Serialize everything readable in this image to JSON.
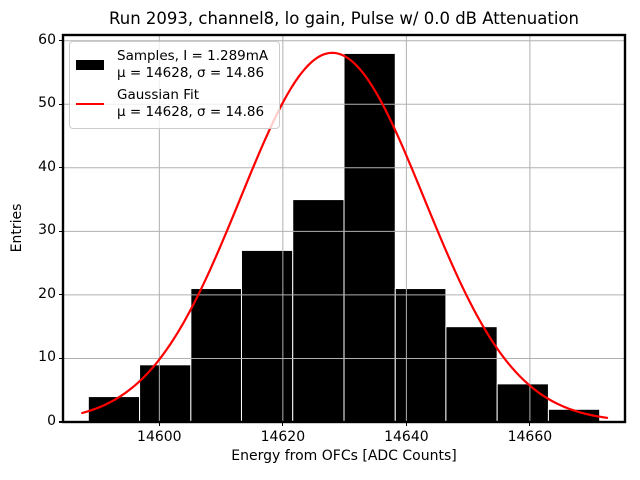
{
  "chart_data": {
    "type": "bar",
    "subtype": "histogram-with-fit",
    "title": "Run 2093, channel8, lo gain, Pulse w/ 0.0 dB Attenuation",
    "xlabel": "Energy from OFCs [ADC Counts]",
    "ylabel": "Entries",
    "x_ticks": [
      14600,
      14620,
      14640,
      14660
    ],
    "y_ticks": [
      0,
      10,
      20,
      30,
      40,
      50,
      60
    ],
    "xlim": [
      14584.4,
      14675.4
    ],
    "ylim": [
      0,
      60.9
    ],
    "grid": true,
    "grid_color": "#b0b0b0",
    "axis_color": "#000000",
    "background_color": "#ffffff",
    "histogram": {
      "bin_edges": [
        14588.5,
        14596.8,
        14605.1,
        14613.3,
        14621.6,
        14629.9,
        14638.2,
        14646.4,
        14654.7,
        14663.0,
        14671.3
      ],
      "counts": [
        4,
        9,
        21,
        27,
        35,
        58,
        21,
        15,
        6,
        2
      ],
      "bar_color": "#000000",
      "bar_edge_color": "#ffffff"
    },
    "gaussian_fit": {
      "mu": 14628,
      "sigma": 14.86,
      "amplitude": 58.1,
      "color": "#ff0000",
      "x_range": [
        14587.5,
        14672.5
      ]
    },
    "legend": {
      "position": "upper left",
      "entries": [
        {
          "label": "Samples, I = 1.289mA",
          "stats": "μ = 14628, σ = 14.86",
          "swatch_color": "#000000",
          "swatch_type": "patch"
        },
        {
          "label": "Gaussian Fit",
          "stats": "μ = 14628, σ = 14.86",
          "swatch_color": "#ff0000",
          "swatch_type": "line"
        }
      ]
    }
  }
}
